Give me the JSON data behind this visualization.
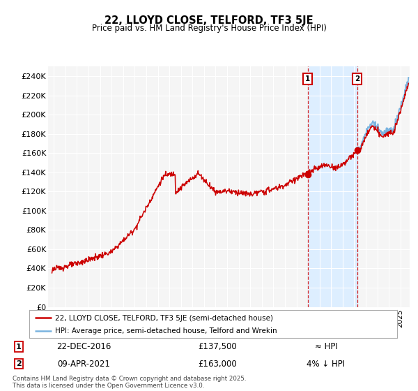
{
  "title": "22, LLOYD CLOSE, TELFORD, TF3 5JE",
  "subtitle": "Price paid vs. HM Land Registry's House Price Index (HPI)",
  "ylabel_ticks": [
    "£0",
    "£20K",
    "£40K",
    "£60K",
    "£80K",
    "£100K",
    "£120K",
    "£140K",
    "£160K",
    "£180K",
    "£200K",
    "£220K",
    "£240K"
  ],
  "ytick_values": [
    0,
    20000,
    40000,
    60000,
    80000,
    100000,
    120000,
    140000,
    160000,
    180000,
    200000,
    220000,
    240000
  ],
  "ylim": [
    0,
    250000
  ],
  "xlim_start": 1994.5,
  "xlim_end": 2025.8,
  "hpi_color": "#7ab4e0",
  "price_color": "#cc0000",
  "shade_color": "#ddeeff",
  "marker1_date": 2016.97,
  "marker1_price": 137500,
  "marker2_date": 2021.27,
  "marker2_price": 163000,
  "marker1_label": "22-DEC-2016",
  "marker1_price_label": "£137,500",
  "marker1_hpi_label": "≈ HPI",
  "marker2_label": "09-APR-2021",
  "marker2_price_label": "£163,000",
  "marker2_hpi_label": "4% ↓ HPI",
  "legend_line1": "22, LLOYD CLOSE, TELFORD, TF3 5JE (semi-detached house)",
  "legend_line2": "HPI: Average price, semi-detached house, Telford and Wrekin",
  "footnote": "Contains HM Land Registry data © Crown copyright and database right 2025.\nThis data is licensed under the Open Government Licence v3.0.",
  "background_color": "#ffffff",
  "plot_bg_color": "#f5f5f5"
}
